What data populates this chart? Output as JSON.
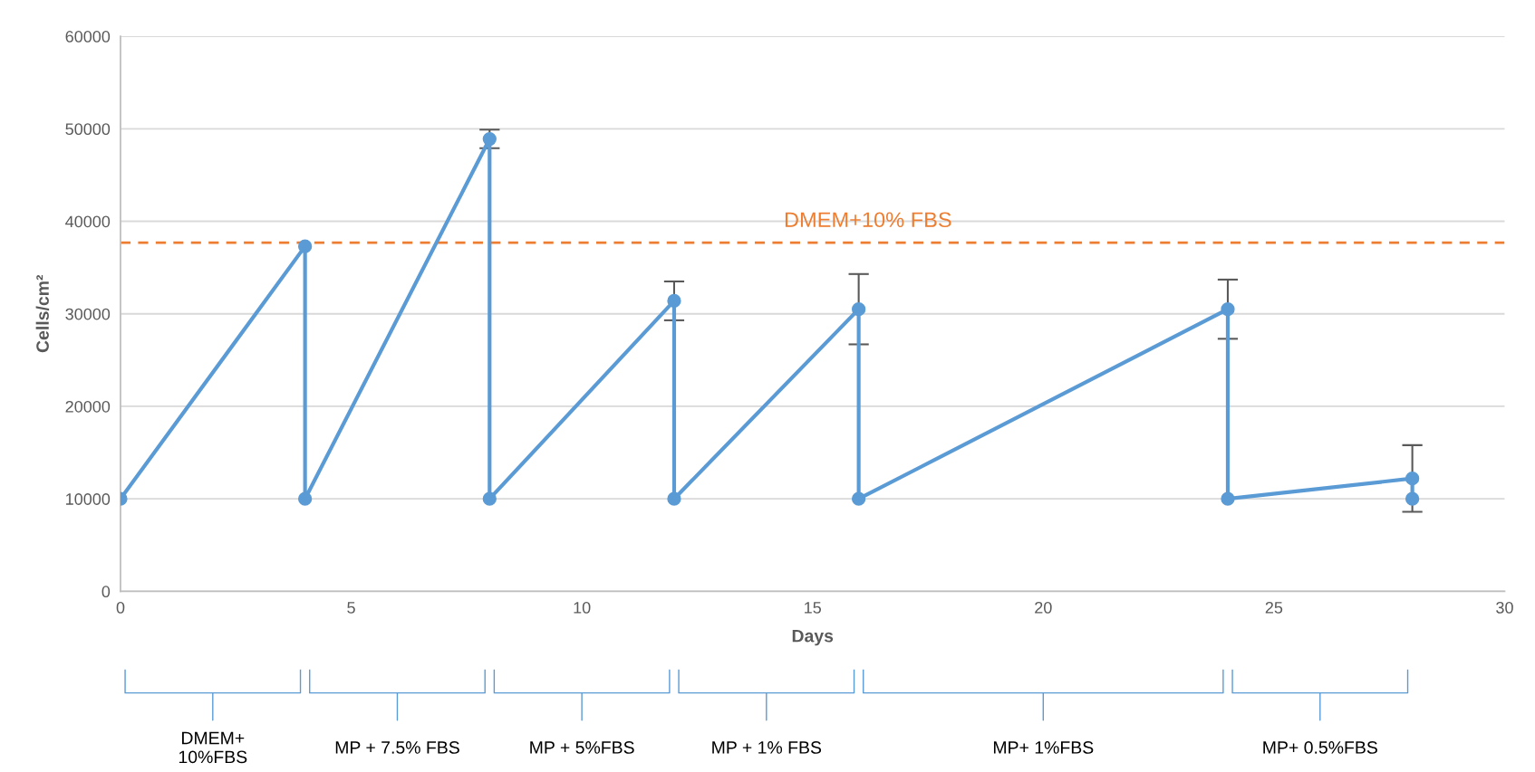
{
  "chart_data": {
    "type": "line",
    "xlabel": "Days",
    "ylabel": "Cells/cm²",
    "x": [
      0,
      4,
      4,
      8,
      8,
      12,
      12,
      16,
      16,
      24,
      24,
      28,
      28
    ],
    "series": [
      {
        "color": "#5b9bd5",
        "values": [
          10000,
          37300,
          10000,
          48900,
          10000,
          31400,
          10000,
          30500,
          10000,
          30500,
          10000,
          12200,
          10000
        ],
        "errors": [
          null,
          null,
          null,
          1000,
          null,
          2100,
          null,
          3800,
          null,
          3200,
          null,
          3600,
          null
        ]
      }
    ],
    "marker": "circle",
    "line_style": "solid",
    "xlim": [
      0,
      30
    ],
    "xticks": [
      0,
      5,
      10,
      15,
      20,
      25,
      30
    ],
    "ylim": [
      0,
      60000
    ],
    "yticks": [
      0,
      10000,
      20000,
      30000,
      40000,
      50000,
      60000
    ],
    "grid": "y",
    "ref_lines": [
      {
        "axis": "y",
        "value": 37700,
        "label": "DMEM+10% FBS",
        "color": "#ed7d31",
        "line_style": "dashed"
      }
    ],
    "annotations": [
      "DMEM+\n10%FBS",
      "MP + 7.5% FBS",
      "MP + 5%FBS",
      "MP + 1% FBS",
      "MP+ 1%FBS",
      "MP+ 0.5%FBS"
    ]
  }
}
